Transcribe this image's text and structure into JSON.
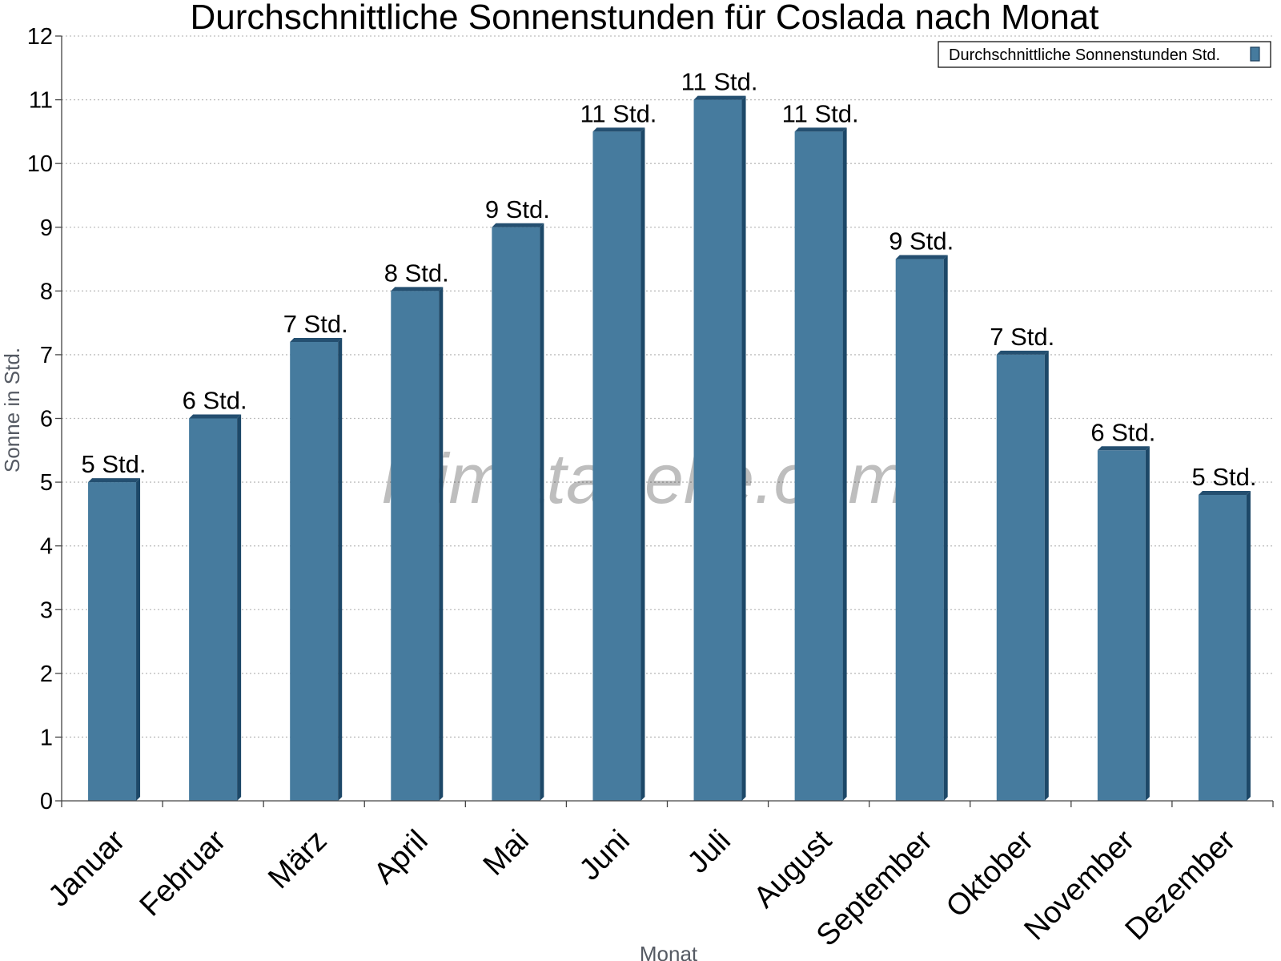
{
  "chart_data": {
    "type": "bar",
    "title": "Durchschnittliche Sonnenstunden für Coslada nach Monat",
    "xlabel": "Monat",
    "ylabel": "Sonne in Std.",
    "ylim": [
      0,
      12
    ],
    "y_ticks": [
      "0",
      "1",
      "2",
      "3",
      "4",
      "5",
      "6",
      "7",
      "8",
      "9",
      "10",
      "11",
      "12"
    ],
    "grid": "horizontal-dotted",
    "legend_position": "top-right",
    "categories": [
      "Januar",
      "Februar",
      "März",
      "April",
      "Mai",
      "Juni",
      "Juli",
      "August",
      "September",
      "Oktober",
      "November",
      "Dezember"
    ],
    "series": [
      {
        "name": "Durchschnittliche Sonnenstunden Std.",
        "color": "#467b9e",
        "values": [
          5.0,
          6.0,
          7.2,
          8.0,
          9.0,
          10.5,
          11.0,
          10.5,
          8.5,
          7.0,
          5.5,
          4.8
        ],
        "data_labels": [
          "5 Std.",
          "6 Std.",
          "7 Std.",
          "8 Std.",
          "9 Std.",
          "11 Std.",
          "11 Std.",
          "11 Std.",
          "9 Std.",
          "7 Std.",
          "6 Std.",
          "5 Std."
        ]
      }
    ]
  },
  "watermark": "klimatabelle.com"
}
